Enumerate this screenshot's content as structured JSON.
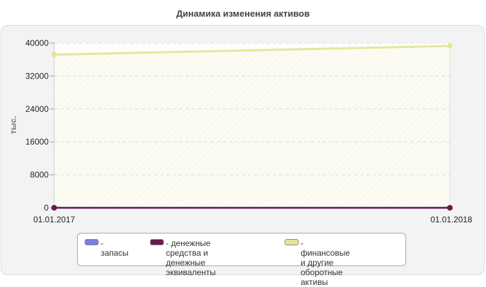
{
  "chart_data": {
    "type": "line",
    "title": "Динамика изменения активов",
    "ylabel": "тыс.",
    "xlabel": "",
    "x": [
      "01.01.2017",
      "01.01.2018"
    ],
    "ylim": [
      0,
      40000
    ],
    "yticks": [
      0,
      8000,
      16000,
      24000,
      32000,
      40000
    ],
    "grid": true,
    "legend_position": "bottom",
    "series": [
      {
        "name": "запасы",
        "values": [
          0,
          0
        ],
        "color": "#7b7bea"
      },
      {
        "name": "денежные средства и\nденежные эквиваленты",
        "values": [
          0,
          0
        ],
        "color": "#6a1b4d"
      },
      {
        "name": "финансовые и другие\nоборотные активы",
        "values": [
          37200,
          39300
        ],
        "color": "#e6e69a"
      }
    ]
  }
}
